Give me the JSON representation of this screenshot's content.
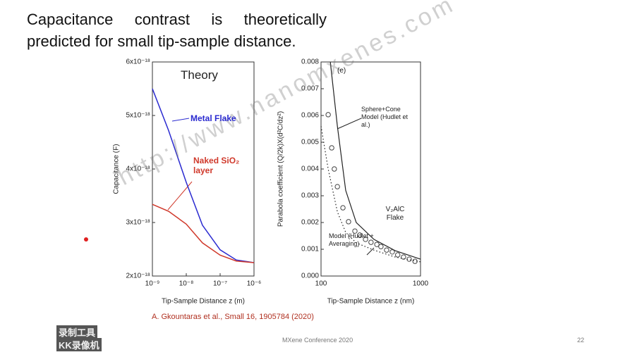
{
  "slide": {
    "title": "Capacitance contrast is theoretically predicted for small tip-sample distance.",
    "citation": "A. Gkountaras et al., Small 16, 1905784 (2020)",
    "footer": "MXene Conference 2020",
    "page": "22"
  },
  "watermarks": [
    "http://www.nanomxenes.com",
    "录制工具",
    "KK录像机"
  ],
  "chart_data": [
    {
      "type": "line",
      "title": "Theory",
      "xlabel": "Tip-Sample Distance z (m)",
      "ylabel": "Capacitance (F)",
      "xscale": "log",
      "xlim": [
        1e-09,
        1e-06
      ],
      "xticks": [
        {
          "value": 1e-09,
          "label": "10⁻⁹"
        },
        {
          "value": 1e-08,
          "label": "10⁻⁸"
        },
        {
          "value": 1e-07,
          "label": "10⁻⁷"
        },
        {
          "value": 1e-06,
          "label": "10⁻⁶"
        }
      ],
      "ylim": [
        2e-18,
        6e-18
      ],
      "yticks": [
        {
          "value": 2e-18,
          "label": "2x10⁻¹⁸"
        },
        {
          "value": 3e-18,
          "label": "3x10⁻¹⁸"
        },
        {
          "value": 4e-18,
          "label": "4x10⁻¹⁸"
        },
        {
          "value": 5e-18,
          "label": "5x10⁻¹⁸"
        },
        {
          "value": 6e-18,
          "label": "6x10⁻¹⁸"
        }
      ],
      "x": [
        1e-09,
        3e-09,
        1e-08,
        3e-08,
        1e-07,
        3e-07,
        1e-06
      ],
      "series": [
        {
          "name": "Metal Flake",
          "color": "#2a2ad0",
          "values": [
            5.5e-18,
            4.72e-18,
            3.75e-18,
            2.95e-18,
            2.49e-18,
            2.3e-18,
            2.25e-18
          ]
        },
        {
          "name": "Naked SiO₂ layer",
          "color": "#d0392b",
          "values": [
            3.34e-18,
            3.21e-18,
            2.97e-18,
            2.62e-18,
            2.39e-18,
            2.28e-18,
            2.25e-18
          ]
        }
      ]
    },
    {
      "type": "line",
      "title": "(e)",
      "xlabel": "Tip-Sample Distance z (nm)",
      "ylabel": "Parabola coefficient (Q/2k)X(d²C/dz²)",
      "xscale": "log",
      "xlim": [
        100,
        1000
      ],
      "xticks": [
        100,
        1000
      ],
      "ylim": [
        0,
        0.008
      ],
      "yticks": [
        {
          "value": 0,
          "label": "0.000"
        },
        {
          "value": 0.001,
          "label": "0.001"
        },
        {
          "value": 0.002,
          "label": "0.002"
        },
        {
          "value": 0.003,
          "label": "0.003"
        },
        {
          "value": 0.004,
          "label": "0.004"
        },
        {
          "value": 0.005,
          "label": "0.005"
        },
        {
          "value": 0.006,
          "label": "0.006"
        },
        {
          "value": 0.007,
          "label": "0.007"
        },
        {
          "value": 0.008,
          "label": "0.008"
        }
      ],
      "series": [
        {
          "name": "Sphere+Cone Model (Hudlet et al.)",
          "type": "line",
          "style": "solid",
          "color": "#222222",
          "x": [
            124,
            146,
            177,
            226,
            340,
            555,
            1000
          ],
          "values": [
            0.008,
            0.0056,
            0.0032,
            0.002,
            0.00137,
            0.00095,
            0.00063
          ]
        },
        {
          "name": "Model (Hudlet + Averaging)",
          "type": "line",
          "style": "dotted",
          "color": "#222222",
          "x": [
            100,
            118,
            146,
            177,
            226,
            340,
            555,
            1000
          ],
          "values": [
            0.0056,
            0.004,
            0.0024,
            0.00163,
            0.00124,
            0.00097,
            0.00071,
            0.00053
          ]
        },
        {
          "name": "V₂AlC Flake",
          "type": "scatter",
          "color": "#444444",
          "x": [
            118,
            128,
            136,
            146,
            166,
            189,
            219,
            245,
            280,
            318,
            364,
            400,
            456,
            520,
            590,
            675,
            770,
            880
          ],
          "values": [
            0.00603,
            0.00479,
            0.004,
            0.00334,
            0.00255,
            0.00203,
            0.00168,
            0.00153,
            0.00137,
            0.00126,
            0.00118,
            0.0011,
            0.00097,
            0.0009,
            0.00079,
            0.00071,
            0.00063,
            0.00055
          ]
        }
      ]
    }
  ]
}
